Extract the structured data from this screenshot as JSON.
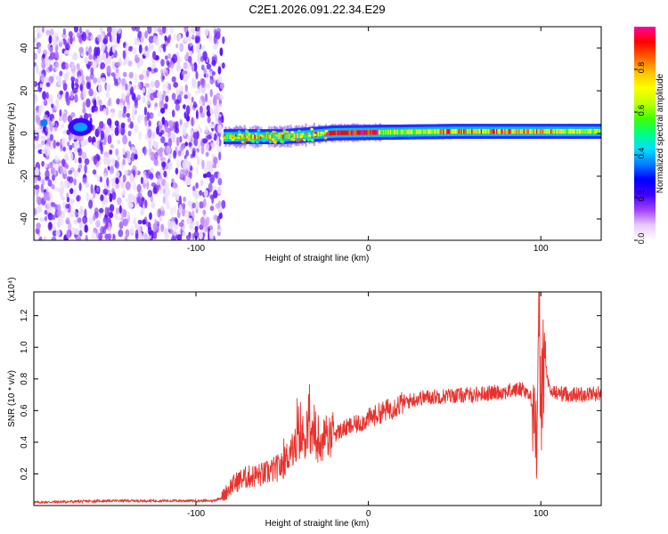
{
  "title": "C2E1.2026.091.22.34.E29",
  "chart_data": [
    {
      "type": "heatmap",
      "name": "spectrogram",
      "xlabel": "Height of straight line (km)",
      "ylabel": "Frequency (Hz)",
      "xlim": [
        -194,
        135
      ],
      "ylim": [
        -50,
        50
      ],
      "xticks": [
        -100,
        0,
        100
      ],
      "yticks": [
        -40,
        -20,
        0,
        20,
        40
      ],
      "noise_region_x": [
        -194,
        -84
      ],
      "signal_band": {
        "x": [
          -84,
          135
        ],
        "freq_hz": [
          {
            "x": -84,
            "f": -1.5
          },
          {
            "x": -50,
            "f": -1.5
          },
          {
            "x": -20,
            "f": 0.3
          },
          {
            "x": 0,
            "f": 0.5
          },
          {
            "x": 50,
            "f": 1.0
          },
          {
            "x": 100,
            "f": 1.0
          },
          {
            "x": 135,
            "f": 1.0
          }
        ]
      },
      "blob": {
        "x": -167,
        "f": 3
      },
      "colorbar": {
        "label": "Normalized spectral amplitude",
        "range": [
          0.0,
          1.0
        ],
        "ticks": [
          "0.0",
          "0.2",
          "0.4",
          "0.6",
          "0.8"
        ],
        "colors": [
          "#ffffff",
          "#e8c8ff",
          "#a040ff",
          "#4000ff",
          "#0000ff",
          "#0080ff",
          "#00e0ff",
          "#00ff80",
          "#40ff00",
          "#c0ff00",
          "#ffff00",
          "#ffc000",
          "#ff6000",
          "#ff0000",
          "#ff00a0"
        ]
      }
    },
    {
      "type": "line",
      "name": "snr",
      "xlabel": "Height of straight line (km)",
      "ylabel": "SNR (10 * v/v)",
      "y_multiplier": "(x10⁴)",
      "xlim": [
        -194,
        135
      ],
      "ylim": [
        0,
        1.35
      ],
      "xticks": [
        -100,
        0,
        100
      ],
      "yticks": [
        0.2,
        0.4,
        0.6,
        0.8,
        1.0,
        1.2
      ],
      "color": "#e8322d",
      "series": [
        {
          "name": "SNR",
          "points": [
            [
              -194,
              0.02
            ],
            [
              -170,
              0.025
            ],
            [
              -150,
              0.03
            ],
            [
              -120,
              0.03
            ],
            [
              -100,
              0.03
            ],
            [
              -90,
              0.03
            ],
            [
              -85,
              0.05
            ],
            [
              -80,
              0.12
            ],
            [
              -75,
              0.16
            ],
            [
              -70,
              0.18
            ],
            [
              -60,
              0.2
            ],
            [
              -50,
              0.25
            ],
            [
              -45,
              0.35
            ],
            [
              -40,
              0.4
            ],
            [
              -35,
              0.45
            ],
            [
              -30,
              0.4
            ],
            [
              -25,
              0.42
            ],
            [
              -20,
              0.45
            ],
            [
              -15,
              0.48
            ],
            [
              -10,
              0.5
            ],
            [
              -5,
              0.52
            ],
            [
              0,
              0.55
            ],
            [
              10,
              0.6
            ],
            [
              20,
              0.65
            ],
            [
              30,
              0.68
            ],
            [
              40,
              0.69
            ],
            [
              60,
              0.7
            ],
            [
              80,
              0.72
            ],
            [
              90,
              0.74
            ],
            [
              96,
              0.65
            ],
            [
              98,
              0.3
            ],
            [
              99,
              1.3
            ],
            [
              100,
              0.6
            ],
            [
              102,
              0.95
            ],
            [
              105,
              0.72
            ],
            [
              110,
              0.71
            ],
            [
              120,
              0.7
            ],
            [
              135,
              0.71
            ]
          ]
        }
      ]
    }
  ]
}
